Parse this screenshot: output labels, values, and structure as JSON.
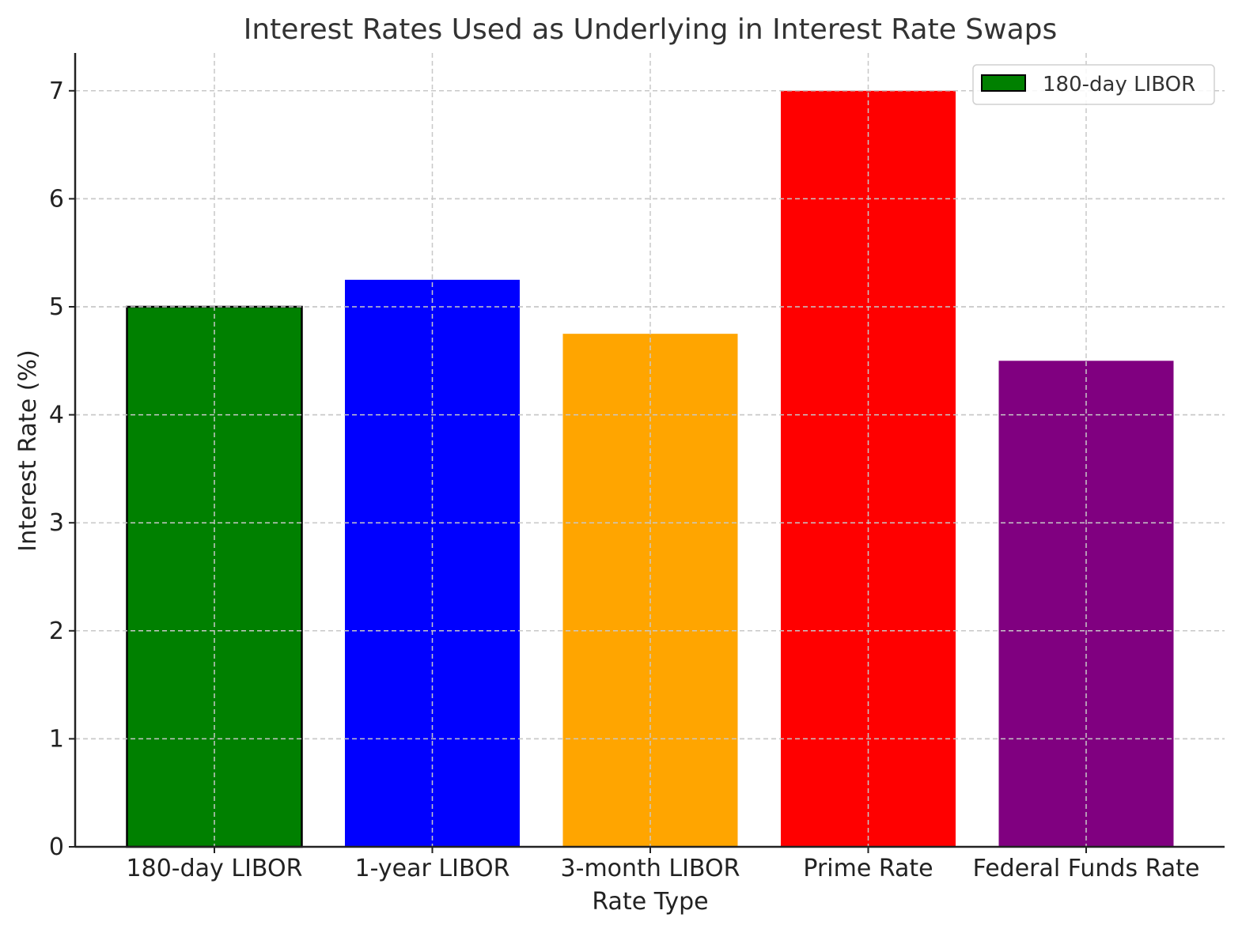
{
  "chart_data": {
    "type": "bar",
    "title": "Interest Rates Used as Underlying in Interest Rate Swaps",
    "xlabel": "Rate Type",
    "ylabel": "Interest Rate (%)",
    "categories": [
      "180-day LIBOR",
      "1-year LIBOR",
      "3-month LIBOR",
      "Prime Rate",
      "Federal Funds Rate"
    ],
    "values": [
      5.0,
      5.25,
      4.75,
      7.0,
      4.5
    ],
    "colors": [
      "#008000",
      "#0000ff",
      "#ffa500",
      "#ff0000",
      "#800080"
    ],
    "highlight_edge_color": "#000000",
    "yticks": [
      0,
      1,
      2,
      3,
      4,
      5,
      6,
      7
    ],
    "ylim": [
      0,
      7.35
    ],
    "grid": true,
    "legend": {
      "position": "top-right",
      "entries": [
        {
          "label": "180-day LIBOR",
          "color": "#008000"
        }
      ]
    }
  }
}
